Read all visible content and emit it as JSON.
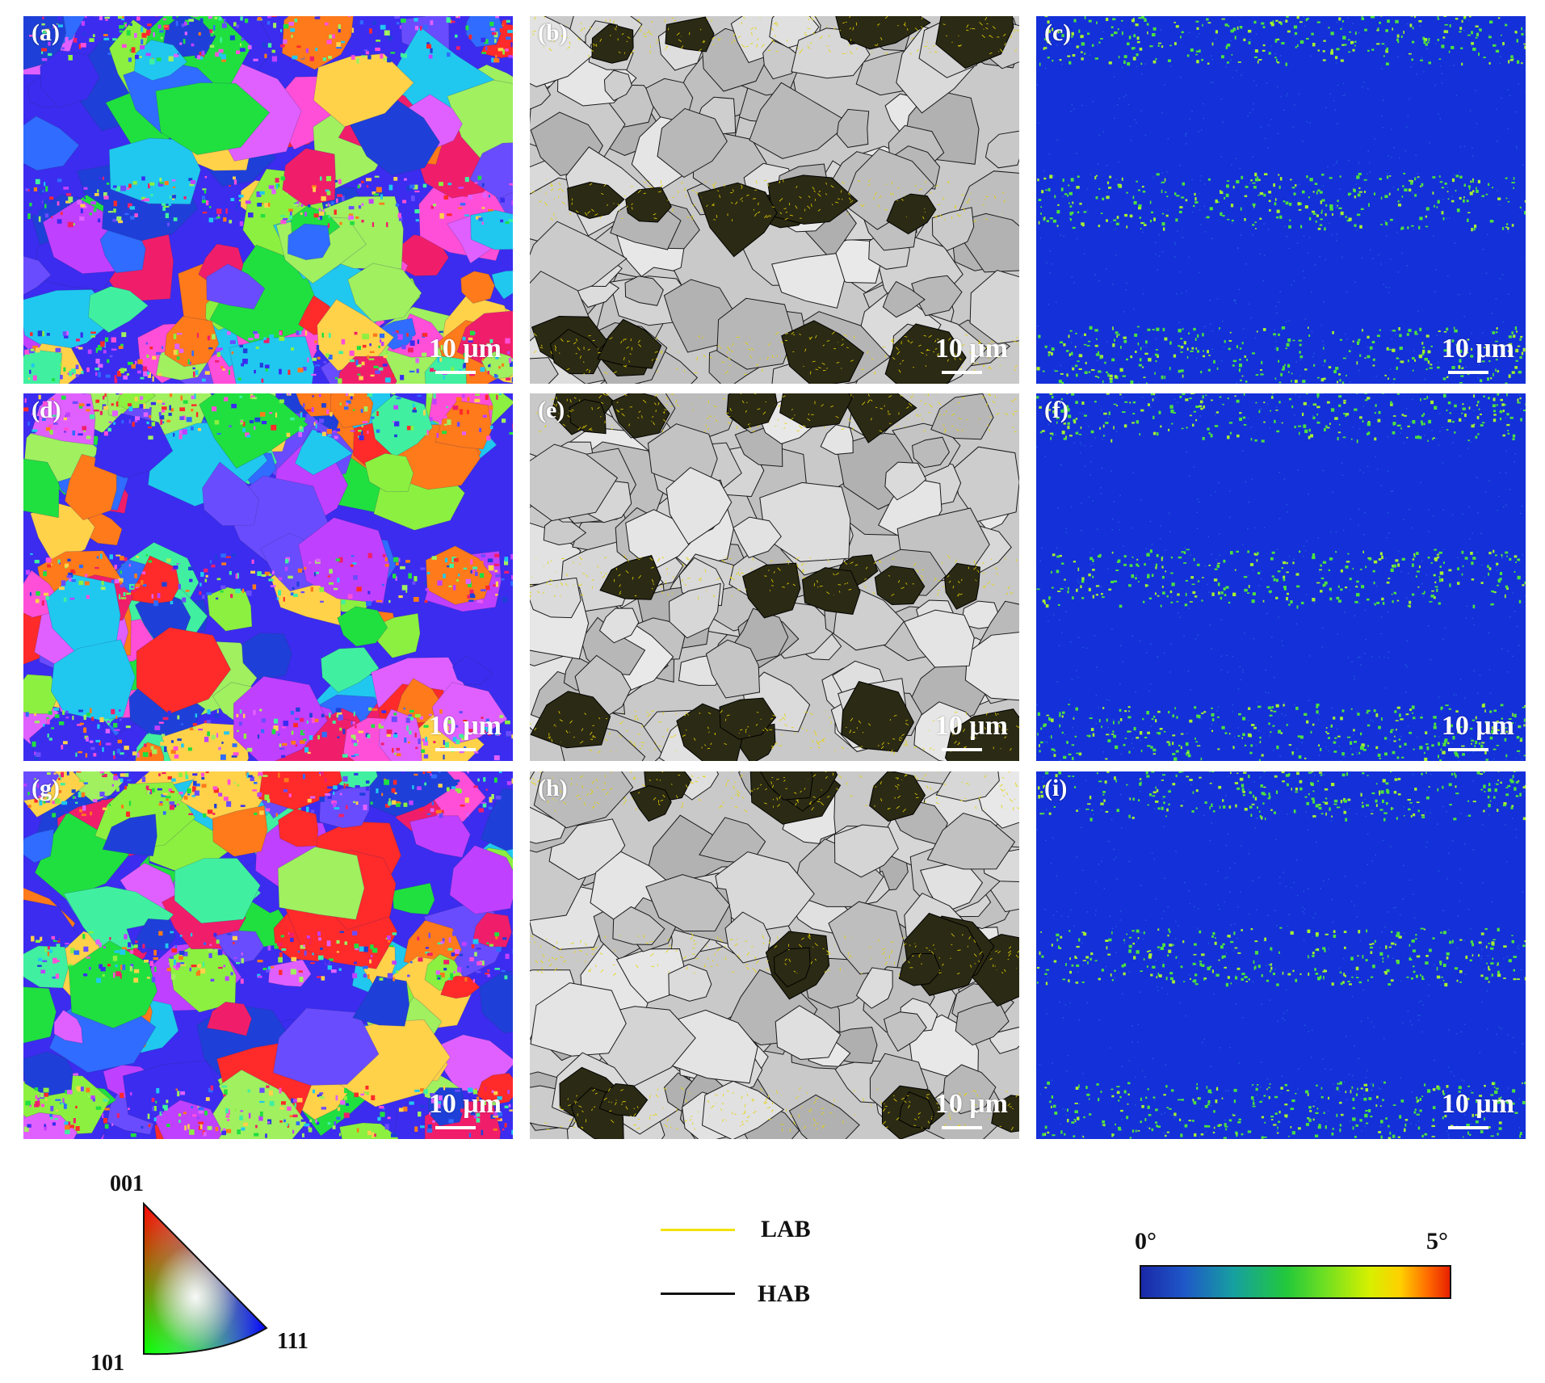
{
  "panels": [
    {
      "label": "(a)",
      "scalebar": "10 μm",
      "type": "orientation-map"
    },
    {
      "label": "(b)",
      "scalebar": "10 μm",
      "type": "boundary-map"
    },
    {
      "label": "(c)",
      "scalebar": "10 μm",
      "type": "misorientation-map"
    },
    {
      "label": "(d)",
      "scalebar": "10 μm",
      "type": "orientation-map"
    },
    {
      "label": "(e)",
      "scalebar": "10 μm",
      "type": "boundary-map"
    },
    {
      "label": "(f)",
      "scalebar": "10 μm",
      "type": "misorientation-map"
    },
    {
      "label": "(g)",
      "scalebar": "10 μm",
      "type": "orientation-map"
    },
    {
      "label": "(h)",
      "scalebar": "10 μm",
      "type": "boundary-map"
    },
    {
      "label": "(i)",
      "scalebar": "10 μm",
      "type": "misorientation-map"
    }
  ],
  "ipf_key": {
    "top": "001",
    "bottom_left": "101",
    "bottom_right": "111"
  },
  "boundary_legend": [
    {
      "label": "LAB",
      "color": "#f2e200"
    },
    {
      "label": "HAB",
      "color": "#111111"
    }
  ],
  "colorbar": {
    "min_label": "0°",
    "max_label": "5°"
  }
}
